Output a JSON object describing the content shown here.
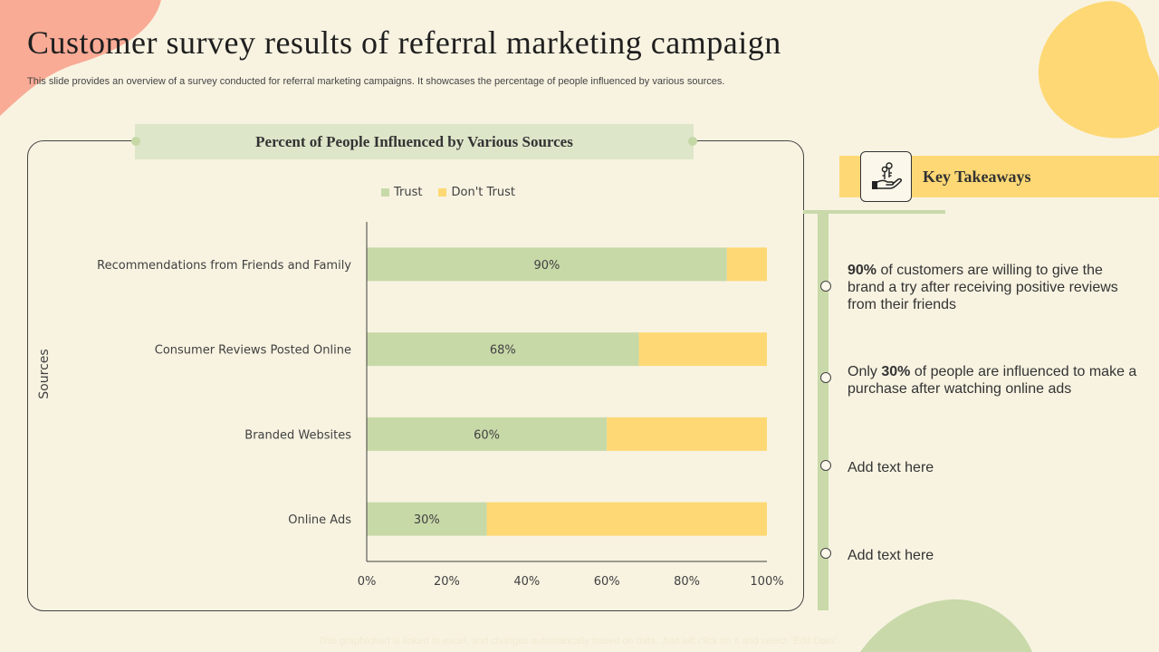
{
  "slide": {
    "title": "Customer survey results of referral marketing campaign",
    "subtitle": "This slide provides an overview of a survey conducted for referral marketing campaigns. It showcases the percentage of people influenced by various sources.",
    "footer_note": "This graph/chart is linked to excel, and changes automatically based on data. Just left click on it and select \"Edit Data\".",
    "colors": {
      "background": "#f8f3e1",
      "trust": "#c8d9a8",
      "dont_trust": "#fdd874",
      "blob_salmon": "#f9ab96",
      "blob_yellow": "#fdd874",
      "blob_green": "#c9d9aa"
    }
  },
  "chart_data": {
    "type": "bar",
    "orientation": "horizontal",
    "stacked": true,
    "title": "Percent of People Influenced by Various Sources",
    "ylabel": "Sources",
    "xlabel": "",
    "categories": [
      "Recommendations from Friends and Family",
      "Consumer Reviews Posted Online",
      "Branded Websites",
      "Online Ads"
    ],
    "series": [
      {
        "name": "Trust",
        "values": [
          90,
          68,
          60,
          30
        ],
        "color": "#c8d9a8"
      },
      {
        "name": "Don't Trust",
        "values": [
          10,
          32,
          40,
          70
        ],
        "color": "#fdd874"
      }
    ],
    "data_labels": [
      "90%",
      "68%",
      "60%",
      "30%"
    ],
    "xlim": [
      0,
      100
    ],
    "x_ticks": [
      "0%",
      "20%",
      "40%",
      "60%",
      "80%",
      "100%"
    ],
    "legend_position": "top",
    "grid": false
  },
  "key_takeaways": {
    "title": "Key Takeaways",
    "icon": "hand-holding-keys-icon",
    "items": [
      {
        "bold": "90%",
        "pre": "",
        "text": " of customers are willing to give the brand a try after receiving positive reviews from their friends"
      },
      {
        "pre": "Only ",
        "bold": "30%",
        "text": " of people are influenced to make a purchase after watching online ads"
      },
      {
        "pre": "",
        "bold": "",
        "text": "Add text here"
      },
      {
        "pre": "",
        "bold": "",
        "text": "Add text here"
      }
    ]
  }
}
